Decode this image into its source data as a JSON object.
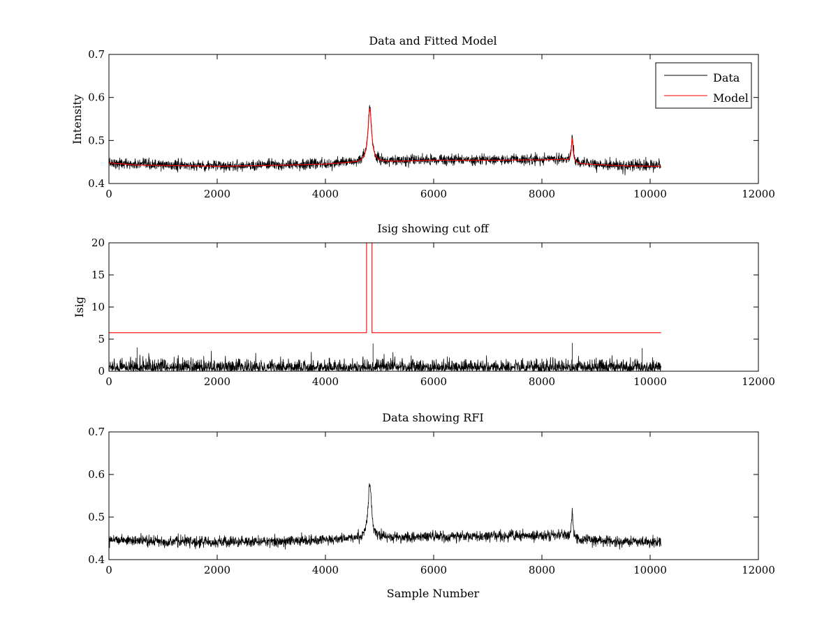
{
  "figure": {
    "background": "#ffffff"
  },
  "chart_data": [
    {
      "type": "line",
      "title": "Data and Fitted Model",
      "xlabel": "",
      "ylabel": "Intensity",
      "xlim": [
        0,
        12000
      ],
      "ylim": [
        0.4,
        0.7
      ],
      "xticks": [
        "0",
        "2000",
        "4000",
        "6000",
        "8000",
        "10000",
        "12000"
      ],
      "yticks": [
        "0.4",
        "0.5",
        "0.6",
        "0.7"
      ],
      "grid": false,
      "legend": {
        "placement": "top-right",
        "entries": [
          "Data",
          "Model"
        ]
      },
      "series": [
        {
          "name": "Data",
          "color": "#000000",
          "style": "noisy",
          "noise": 0.006,
          "x_range": [
            0,
            10200
          ],
          "baseline": [
            [
              0,
              0.449
            ],
            [
              500,
              0.444
            ],
            [
              2000,
              0.441
            ],
            [
              3000,
              0.443
            ],
            [
              4000,
              0.446
            ],
            [
              4400,
              0.449
            ],
            [
              5000,
              0.451
            ],
            [
              6000,
              0.455
            ],
            [
              7000,
              0.455
            ],
            [
              8000,
              0.456
            ],
            [
              8400,
              0.457
            ],
            [
              8700,
              0.447
            ],
            [
              9500,
              0.442
            ],
            [
              10200,
              0.441
            ]
          ],
          "peaks": [
            {
              "x": 4820,
              "height": 0.125,
              "width": 40
            },
            {
              "x": 8560,
              "height": 0.06,
              "width": 18
            }
          ]
        },
        {
          "name": "Model",
          "color": "#ff0000",
          "style": "smooth",
          "x_range": [
            0,
            10200
          ],
          "baseline": [
            [
              0,
              0.448
            ],
            [
              500,
              0.443
            ],
            [
              2000,
              0.44
            ],
            [
              3000,
              0.442
            ],
            [
              4000,
              0.445
            ],
            [
              4400,
              0.448
            ],
            [
              5000,
              0.45
            ],
            [
              6000,
              0.454
            ],
            [
              7000,
              0.454
            ],
            [
              8000,
              0.455
            ],
            [
              8400,
              0.456
            ],
            [
              8700,
              0.446
            ],
            [
              9500,
              0.441
            ],
            [
              10200,
              0.44
            ]
          ],
          "peaks": [
            {
              "x": 4820,
              "height": 0.125,
              "width": 40
            },
            {
              "x": 8560,
              "height": 0.055,
              "width": 18
            }
          ]
        }
      ]
    },
    {
      "type": "line",
      "title": "Isig showing cut off",
      "xlabel": "",
      "ylabel": "Isig",
      "xlim": [
        0,
        12000
      ],
      "ylim": [
        0,
        20
      ],
      "xticks": [
        "0",
        "2000",
        "4000",
        "6000",
        "8000",
        "10000",
        "12000"
      ],
      "yticks": [
        "0",
        "5",
        "10",
        "15",
        "20"
      ],
      "grid": false,
      "series": [
        {
          "color": "#000000",
          "style": "abs-noise",
          "scale": 0.85,
          "x_range": [
            0,
            10200
          ],
          "spikes": [
            {
              "x": 4880,
              "value": 4.3
            },
            {
              "x": 8560,
              "value": 4.4
            },
            {
              "x": 520,
              "value": 3.7
            },
            {
              "x": 9850,
              "value": 3.6
            }
          ]
        },
        {
          "color": "#ff0000",
          "style": "step",
          "points": [
            [
              0,
              6
            ],
            [
              4760,
              6
            ],
            [
              4760,
              20
            ],
            [
              4860,
              20
            ],
            [
              4860,
              6
            ],
            [
              10200,
              6
            ]
          ]
        }
      ]
    },
    {
      "type": "line",
      "title": "Data showing RFI",
      "xlabel": "Sample Number",
      "ylabel": "",
      "xlim": [
        0,
        12000
      ],
      "ylim": [
        0.4,
        0.7
      ],
      "xticks": [
        "0",
        "2000",
        "4000",
        "6000",
        "8000",
        "10000",
        "12000"
      ],
      "yticks": [
        "0.4",
        "0.5",
        "0.6",
        "0.7"
      ],
      "grid": false,
      "series": [
        {
          "color": "#000000",
          "style": "noisy",
          "noise": 0.006,
          "x_range": [
            0,
            10200
          ],
          "baseline": [
            [
              0,
              0.449
            ],
            [
              500,
              0.444
            ],
            [
              2000,
              0.441
            ],
            [
              3000,
              0.443
            ],
            [
              4000,
              0.446
            ],
            [
              4400,
              0.449
            ],
            [
              5000,
              0.451
            ],
            [
              6000,
              0.455
            ],
            [
              7000,
              0.455
            ],
            [
              8000,
              0.456
            ],
            [
              8400,
              0.457
            ],
            [
              8700,
              0.447
            ],
            [
              9500,
              0.442
            ],
            [
              10200,
              0.441
            ]
          ],
          "peaks": [
            {
              "x": 4820,
              "height": 0.125,
              "width": 40
            },
            {
              "x": 8560,
              "height": 0.06,
              "width": 18
            }
          ]
        }
      ]
    }
  ]
}
